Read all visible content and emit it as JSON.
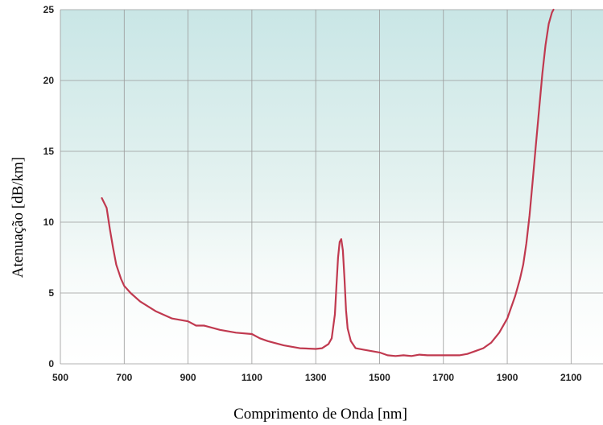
{
  "chart_data": {
    "type": "line",
    "xlabel": "Comprimento de Onda [nm]",
    "ylabel": "Atenuação [dB/km]",
    "xlim": [
      500,
      2200
    ],
    "ylim": [
      0,
      25
    ],
    "x_ticks": [
      500,
      700,
      900,
      1100,
      1300,
      1500,
      1700,
      1900,
      2100
    ],
    "y_ticks": [
      0,
      5,
      10,
      15,
      20,
      25
    ],
    "grid": true,
    "legend": "none",
    "colors": {
      "line": "#c0394f",
      "background_top": "#cfe8e8",
      "background_bottom": "#ffffff"
    },
    "series": [
      {
        "x": [
          630,
          645,
          655,
          665,
          675,
          690,
          700,
          720,
          750,
          800,
          850,
          900,
          925,
          950,
          1000,
          1050,
          1100,
          1125,
          1150,
          1200,
          1250,
          1300,
          1320,
          1340,
          1350,
          1360,
          1365,
          1370,
          1375,
          1380,
          1385,
          1390,
          1395,
          1400,
          1410,
          1425,
          1450,
          1475,
          1500,
          1525,
          1550,
          1575,
          1600,
          1625,
          1650,
          1700,
          1750,
          1775,
          1800,
          1825,
          1850,
          1875,
          1900,
          1925,
          1940,
          1950,
          1960,
          1970,
          1980,
          1990,
          2000,
          2010,
          2020,
          2030,
          2040,
          2045
        ],
        "y": [
          11.7,
          11.0,
          9.5,
          8.2,
          7.0,
          6.0,
          5.5,
          5.0,
          4.4,
          3.7,
          3.2,
          3.0,
          2.7,
          2.7,
          2.4,
          2.2,
          2.1,
          1.8,
          1.6,
          1.3,
          1.1,
          1.05,
          1.1,
          1.4,
          1.8,
          3.5,
          5.5,
          7.5,
          8.6,
          8.8,
          8.0,
          6.0,
          3.8,
          2.5,
          1.6,
          1.1,
          1.0,
          0.9,
          0.8,
          0.6,
          0.55,
          0.6,
          0.55,
          0.65,
          0.6,
          0.6,
          0.6,
          0.7,
          0.9,
          1.1,
          1.5,
          2.2,
          3.2,
          4.8,
          6.0,
          7.0,
          8.5,
          10.5,
          13.0,
          15.5,
          18.0,
          20.5,
          22.5,
          24.0,
          24.8,
          25.0
        ]
      }
    ]
  }
}
